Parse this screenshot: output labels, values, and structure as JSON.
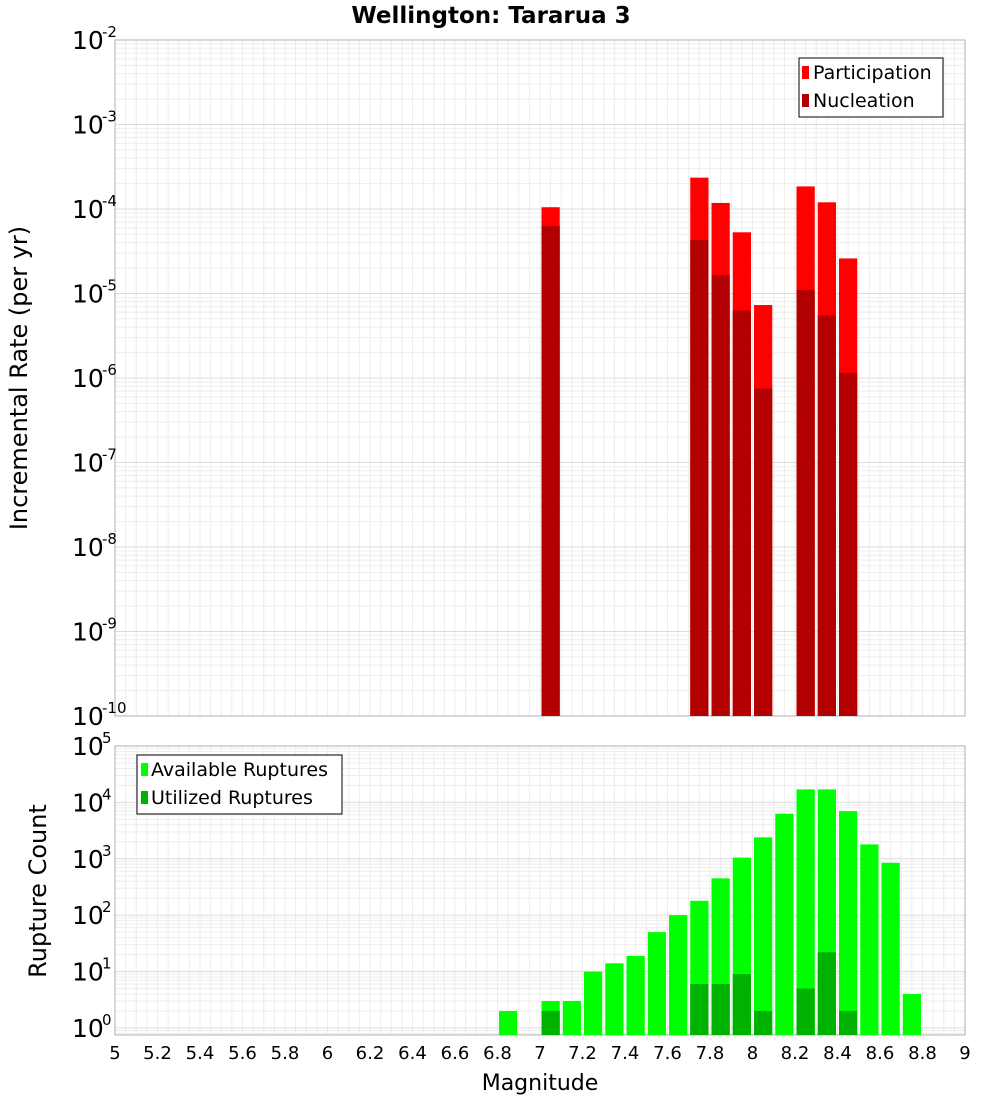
{
  "chart_data": [
    {
      "type": "bar",
      "title": "Wellington: Tararua 3",
      "ylabel": "Incremental Rate (per yr)",
      "xlabel": "",
      "xlim": [
        5,
        9
      ],
      "ylim": [
        1e-10,
        0.01
      ],
      "yscale": "log",
      "bar_width": 0.1,
      "yticks": [
        {
          "base": "10",
          "exp": "-10",
          "value": 1e-10
        },
        {
          "base": "10",
          "exp": "-9",
          "value": 1e-09
        },
        {
          "base": "10",
          "exp": "-8",
          "value": 1e-08
        },
        {
          "base": "10",
          "exp": "-7",
          "value": 1e-07
        },
        {
          "base": "10",
          "exp": "-6",
          "value": 1e-06
        },
        {
          "base": "10",
          "exp": "-5",
          "value": 1e-05
        },
        {
          "base": "10",
          "exp": "-4",
          "value": 0.0001
        },
        {
          "base": "10",
          "exp": "-3",
          "value": 0.001
        },
        {
          "base": "10",
          "exp": "-2",
          "value": 0.01
        }
      ],
      "legend": {
        "position": "top-right"
      },
      "series": [
        {
          "name": "Participation",
          "color": "#ff0000",
          "x": [
            7.05,
            7.75,
            7.85,
            7.95,
            8.05,
            8.25,
            8.35,
            8.45
          ],
          "values": [
            0.000105,
            0.000235,
            0.000118,
            5.3e-05,
            7.3e-06,
            0.000185,
            0.00012,
            2.6e-05
          ]
        },
        {
          "name": "Nucleation",
          "color": "#b20000",
          "x": [
            7.05,
            7.75,
            7.85,
            7.95,
            8.05,
            8.25,
            8.35,
            8.45
          ],
          "values": [
            6.3e-05,
            4.3e-05,
            1.65e-05,
            6.3e-06,
            7.5e-07,
            1.1e-05,
            5.5e-06,
            1.15e-06
          ]
        }
      ]
    },
    {
      "type": "bar",
      "title": "",
      "ylabel": "Rupture Count",
      "xlabel": "Magnitude",
      "xlim": [
        5,
        9
      ],
      "ylim": [
        0.75,
        100000.0
      ],
      "yscale": "log",
      "bar_width": 0.1,
      "xticks": [
        "5",
        "5.2",
        "5.4",
        "5.6",
        "5.8",
        "6",
        "6.2",
        "6.4",
        "6.6",
        "6.8",
        "7",
        "7.2",
        "7.4",
        "7.6",
        "7.8",
        "8",
        "8.2",
        "8.4",
        "8.6",
        "8.8",
        "9"
      ],
      "yticks": [
        {
          "base": "10",
          "exp": "0",
          "value": 1
        },
        {
          "base": "10",
          "exp": "1",
          "value": 10
        },
        {
          "base": "10",
          "exp": "2",
          "value": 100
        },
        {
          "base": "10",
          "exp": "3",
          "value": 1000
        },
        {
          "base": "10",
          "exp": "4",
          "value": 10000
        },
        {
          "base": "10",
          "exp": "5",
          "value": 100000
        }
      ],
      "legend": {
        "position": "top-left"
      },
      "series": [
        {
          "name": "Available Ruptures",
          "color": "#00ff00",
          "x": [
            6.85,
            7.05,
            7.15,
            7.25,
            7.35,
            7.45,
            7.55,
            7.65,
            7.75,
            7.85,
            7.95,
            8.05,
            8.15,
            8.25,
            8.35,
            8.45,
            8.55,
            8.65,
            8.75
          ],
          "values": [
            2,
            3,
            3,
            10,
            14,
            19,
            50,
            100,
            180,
            450,
            1050,
            2400,
            6300,
            17000,
            17000,
            7000,
            1800,
            850,
            4
          ]
        },
        {
          "name": "Utilized Ruptures",
          "color": "#00b200",
          "x": [
            7.05,
            7.75,
            7.85,
            7.95,
            8.05,
            8.25,
            8.35,
            8.45
          ],
          "values": [
            2,
            6,
            6,
            9,
            2,
            5,
            22,
            2
          ]
        }
      ]
    }
  ]
}
